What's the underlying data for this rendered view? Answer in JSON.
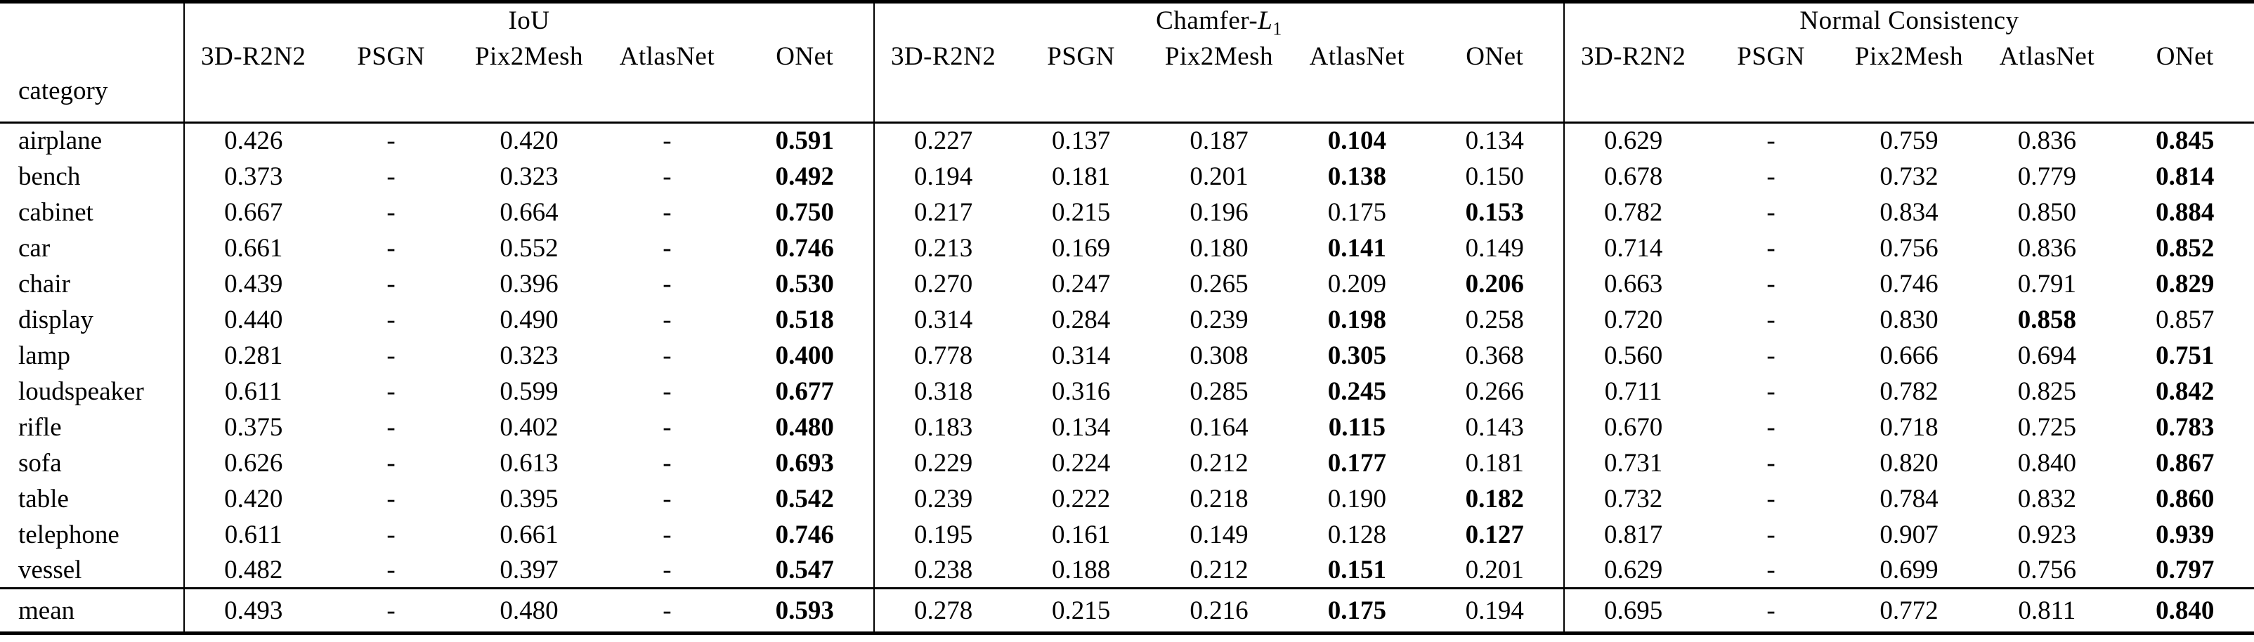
{
  "table": {
    "corner_label": "category",
    "groups": [
      {
        "label": "IoU"
      },
      {
        "prefix": "Chamfer-",
        "variable": "L",
        "subscript": "1"
      },
      {
        "label": "Normal Consistency"
      }
    ],
    "methods": [
      "3D-R2N2",
      "PSGN",
      "Pix2Mesh",
      "AtlasNet",
      "ONet"
    ],
    "rows": [
      {
        "category": "airplane",
        "values": [
          "0.426",
          "-",
          "0.420",
          "-",
          "0.591",
          "0.227",
          "0.137",
          "0.187",
          "0.104",
          "0.134",
          "0.629",
          "-",
          "0.759",
          "0.836",
          "0.845"
        ],
        "bold": [
          4,
          8,
          14
        ]
      },
      {
        "category": "bench",
        "values": [
          "0.373",
          "-",
          "0.323",
          "-",
          "0.492",
          "0.194",
          "0.181",
          "0.201",
          "0.138",
          "0.150",
          "0.678",
          "-",
          "0.732",
          "0.779",
          "0.814"
        ],
        "bold": [
          4,
          8,
          14
        ]
      },
      {
        "category": "cabinet",
        "values": [
          "0.667",
          "-",
          "0.664",
          "-",
          "0.750",
          "0.217",
          "0.215",
          "0.196",
          "0.175",
          "0.153",
          "0.782",
          "-",
          "0.834",
          "0.850",
          "0.884"
        ],
        "bold": [
          4,
          9,
          14
        ]
      },
      {
        "category": "car",
        "values": [
          "0.661",
          "-",
          "0.552",
          "-",
          "0.746",
          "0.213",
          "0.169",
          "0.180",
          "0.141",
          "0.149",
          "0.714",
          "-",
          "0.756",
          "0.836",
          "0.852"
        ],
        "bold": [
          4,
          8,
          14
        ]
      },
      {
        "category": "chair",
        "values": [
          "0.439",
          "-",
          "0.396",
          "-",
          "0.530",
          "0.270",
          "0.247",
          "0.265",
          "0.209",
          "0.206",
          "0.663",
          "-",
          "0.746",
          "0.791",
          "0.829"
        ],
        "bold": [
          4,
          9,
          14
        ]
      },
      {
        "category": "display",
        "values": [
          "0.440",
          "-",
          "0.490",
          "-",
          "0.518",
          "0.314",
          "0.284",
          "0.239",
          "0.198",
          "0.258",
          "0.720",
          "-",
          "0.830",
          "0.858",
          "0.857"
        ],
        "bold": [
          4,
          8,
          13
        ]
      },
      {
        "category": "lamp",
        "values": [
          "0.281",
          "-",
          "0.323",
          "-",
          "0.400",
          "0.778",
          "0.314",
          "0.308",
          "0.305",
          "0.368",
          "0.560",
          "-",
          "0.666",
          "0.694",
          "0.751"
        ],
        "bold": [
          4,
          8,
          14
        ]
      },
      {
        "category": "loudspeaker",
        "values": [
          "0.611",
          "-",
          "0.599",
          "-",
          "0.677",
          "0.318",
          "0.316",
          "0.285",
          "0.245",
          "0.266",
          "0.711",
          "-",
          "0.782",
          "0.825",
          "0.842"
        ],
        "bold": [
          4,
          8,
          14
        ]
      },
      {
        "category": "rifle",
        "values": [
          "0.375",
          "-",
          "0.402",
          "-",
          "0.480",
          "0.183",
          "0.134",
          "0.164",
          "0.115",
          "0.143",
          "0.670",
          "-",
          "0.718",
          "0.725",
          "0.783"
        ],
        "bold": [
          4,
          8,
          14
        ]
      },
      {
        "category": "sofa",
        "values": [
          "0.626",
          "-",
          "0.613",
          "-",
          "0.693",
          "0.229",
          "0.224",
          "0.212",
          "0.177",
          "0.181",
          "0.731",
          "-",
          "0.820",
          "0.840",
          "0.867"
        ],
        "bold": [
          4,
          8,
          14
        ]
      },
      {
        "category": "table",
        "values": [
          "0.420",
          "-",
          "0.395",
          "-",
          "0.542",
          "0.239",
          "0.222",
          "0.218",
          "0.190",
          "0.182",
          "0.732",
          "-",
          "0.784",
          "0.832",
          "0.860"
        ],
        "bold": [
          4,
          9,
          14
        ]
      },
      {
        "category": "telephone",
        "values": [
          "0.611",
          "-",
          "0.661",
          "-",
          "0.746",
          "0.195",
          "0.161",
          "0.149",
          "0.128",
          "0.127",
          "0.817",
          "-",
          "0.907",
          "0.923",
          "0.939"
        ],
        "bold": [
          4,
          9,
          14
        ]
      },
      {
        "category": "vessel",
        "values": [
          "0.482",
          "-",
          "0.397",
          "-",
          "0.547",
          "0.238",
          "0.188",
          "0.212",
          "0.151",
          "0.201",
          "0.629",
          "-",
          "0.699",
          "0.756",
          "0.797"
        ],
        "bold": [
          4,
          8,
          14
        ]
      }
    ],
    "mean_row": {
      "category": "mean",
      "values": [
        "0.493",
        "-",
        "0.480",
        "-",
        "0.593",
        "0.278",
        "0.215",
        "0.216",
        "0.175",
        "0.194",
        "0.695",
        "-",
        "0.772",
        "0.811",
        "0.840"
      ],
      "bold": [
        4,
        8,
        14
      ]
    }
  }
}
